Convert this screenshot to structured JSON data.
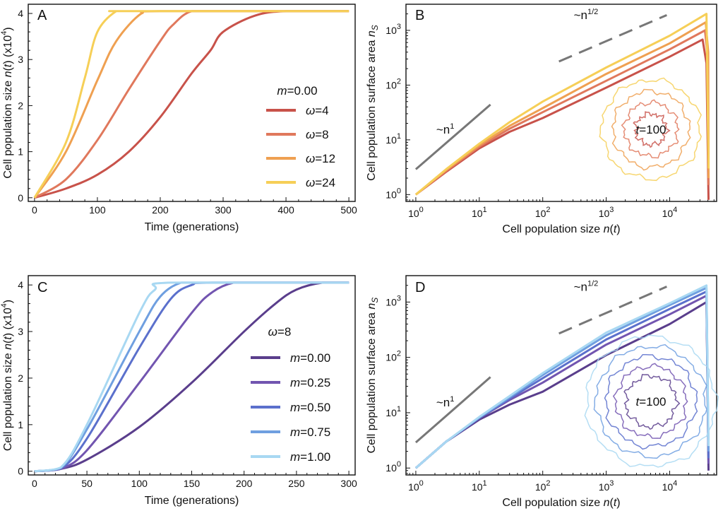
{
  "chart_data": [
    {
      "panel": "A",
      "type": "line",
      "xlabel": "Time (generations)",
      "ylabel": "Cell population size n(t) (x10⁴)",
      "xlim": [
        -10,
        510
      ],
      "ylim": [
        -0.08,
        4.2
      ],
      "xticks": [
        "0",
        "100",
        "200",
        "300",
        "400",
        "500"
      ],
      "yticks": [
        "0",
        "1",
        "2",
        "3",
        "4"
      ],
      "legend_title": "m=0.00",
      "legend_placement": "right",
      "series": [
        {
          "name": "ω=4",
          "color": "#c8524a",
          "x": [
            0,
            50,
            100,
            150,
            200,
            250,
            280,
            300,
            350,
            400,
            500
          ],
          "y": [
            0,
            0.2,
            0.5,
            1.0,
            1.75,
            2.7,
            3.2,
            3.6,
            3.95,
            4.05,
            4.05
          ]
        },
        {
          "name": "ω=8",
          "color": "#e0785c",
          "x": [
            0,
            50,
            100,
            150,
            200,
            220,
            250,
            300,
            500
          ],
          "y": [
            0,
            0.4,
            1.25,
            2.35,
            3.4,
            3.75,
            4.05,
            4.05,
            4.05
          ]
        },
        {
          "name": "ω=12",
          "color": "#efa051",
          "x": [
            0,
            50,
            100,
            130,
            170,
            200,
            500
          ],
          "y": [
            0,
            1.0,
            2.55,
            3.4,
            4.0,
            4.05,
            4.05
          ]
        },
        {
          "name": "ω=24",
          "color": "#f6cf57",
          "x": [
            0,
            50,
            80,
            100,
            130,
            150,
            500
          ],
          "y": [
            0,
            1.2,
            2.6,
            3.6,
            4.05,
            4.05,
            4.05
          ]
        }
      ]
    },
    {
      "panel": "B",
      "type": "line",
      "xlabel": "Cell population size n(t)",
      "ylabel": "Cell population surface area nS",
      "xscale": "log",
      "yscale": "log",
      "xlim": [
        0.7,
        55000
      ],
      "ylim": [
        0.75,
        3000
      ],
      "xticks": [
        "10⁰",
        "10¹",
        "10²",
        "10³",
        "10⁴"
      ],
      "yticks": [
        "10⁰",
        "10¹",
        "10²",
        "10³"
      ],
      "annotations": [
        "~n¹",
        "~n¹ᐟ²",
        "t=100"
      ],
      "series": [
        {
          "name": "ω=4",
          "color": "#c8524a",
          "x": [
            1,
            3,
            10,
            30,
            100,
            1000,
            10000,
            33000,
            38000,
            41000
          ],
          "y": [
            1,
            2.6,
            7,
            14,
            25,
            90,
            330,
            680,
            250,
            0.8
          ]
        },
        {
          "name": "ω=8",
          "color": "#e0785c",
          "x": [
            1,
            3,
            10,
            30,
            100,
            1000,
            10000,
            36000,
            40000,
            41000
          ],
          "y": [
            1,
            2.7,
            7.5,
            16,
            32,
            120,
            450,
            1000,
            300,
            1.5
          ]
        },
        {
          "name": "ω=12",
          "color": "#efa051",
          "x": [
            1,
            3,
            10,
            30,
            100,
            1000,
            10000,
            37000,
            40500,
            41000
          ],
          "y": [
            1,
            2.8,
            8,
            18,
            38,
            160,
            580,
            1400,
            400,
            2
          ]
        },
        {
          "name": "ω=24",
          "color": "#f6cf57",
          "x": [
            1,
            3,
            10,
            30,
            100,
            1000,
            10000,
            38000,
            41000
          ],
          "y": [
            1,
            2.9,
            8.5,
            21,
            50,
            210,
            800,
            2000,
            3
          ]
        }
      ]
    },
    {
      "panel": "C",
      "type": "line",
      "xlabel": "Time (generations)",
      "ylabel": "Cell population size n(t) (x10⁴)",
      "xlim": [
        -6,
        306
      ],
      "ylim": [
        -0.08,
        4.2
      ],
      "xticks": [
        "0",
        "50",
        "100",
        "150",
        "200",
        "250",
        "300"
      ],
      "yticks": [
        "0",
        "1",
        "2",
        "3",
        "4"
      ],
      "legend_title": "ω=8",
      "legend_placement": "right",
      "series": [
        {
          "name": "m=0.00",
          "color": "#5a3e8c",
          "x": [
            0,
            25,
            50,
            100,
            150,
            200,
            230,
            250,
            275,
            300
          ],
          "y": [
            0,
            0.05,
            0.25,
            0.95,
            1.9,
            3.0,
            3.6,
            3.9,
            4.05,
            4.05
          ]
        },
        {
          "name": "m=0.25",
          "color": "#7255b0",
          "x": [
            0,
            25,
            50,
            100,
            150,
            170,
            190,
            210,
            300
          ],
          "y": [
            0,
            0.05,
            0.45,
            1.9,
            3.4,
            3.85,
            4.05,
            4.05,
            4.05
          ]
        },
        {
          "name": "m=0.50",
          "color": "#5b70cc",
          "x": [
            0,
            25,
            50,
            100,
            130,
            150,
            170,
            300
          ],
          "y": [
            0,
            0.06,
            0.7,
            2.65,
            3.7,
            4.0,
            4.05,
            4.05
          ]
        },
        {
          "name": "m=0.75",
          "color": "#6f9fe0",
          "x": [
            0,
            25,
            50,
            100,
            120,
            140,
            160,
            300
          ],
          "y": [
            0,
            0.07,
            0.9,
            3.0,
            3.75,
            4.05,
            4.05,
            4.05
          ]
        },
        {
          "name": "m=1.00",
          "color": "#a8d8f2",
          "x": [
            0,
            25,
            50,
            100,
            115,
            130,
            300
          ],
          "y": [
            0,
            0.08,
            1.0,
            3.4,
            3.9,
            4.05,
            4.05
          ]
        }
      ]
    },
    {
      "panel": "D",
      "type": "line",
      "xlabel": "Cell population size n(t)",
      "ylabel": "Cell population surface area nS",
      "xscale": "log",
      "yscale": "log",
      "xlim": [
        0.7,
        55000
      ],
      "ylim": [
        0.75,
        3000
      ],
      "xticks": [
        "10⁰",
        "10¹",
        "10²",
        "10³",
        "10⁴"
      ],
      "yticks": [
        "10⁰",
        "10¹",
        "10²",
        "10³"
      ],
      "annotations": [
        "~n¹",
        "~n¹ᐟ²",
        "t=100"
      ],
      "series": [
        {
          "name": "m=0.00",
          "color": "#5a3e8c",
          "x": [
            1,
            3,
            10,
            30,
            100,
            1000,
            10000,
            38000,
            41000
          ],
          "y": [
            1,
            3,
            7.5,
            14,
            24,
            110,
            400,
            1000,
            0.9
          ]
        },
        {
          "name": "m=0.25",
          "color": "#7255b0",
          "x": [
            1,
            3,
            10,
            30,
            100,
            1000,
            10000,
            38000,
            41000
          ],
          "y": [
            1,
            3,
            8,
            17,
            35,
            170,
            600,
            1300,
            1.2
          ]
        },
        {
          "name": "m=0.50",
          "color": "#5b70cc",
          "x": [
            1,
            3,
            10,
            30,
            100,
            1000,
            10000,
            38000,
            41000
          ],
          "y": [
            1,
            3,
            8,
            18,
            42,
            210,
            750,
            1550,
            1.5
          ]
        },
        {
          "name": "m=0.75",
          "color": "#6f9fe0",
          "x": [
            1,
            3,
            10,
            30,
            100,
            1000,
            10000,
            38000,
            41000
          ],
          "y": [
            1,
            3,
            8.2,
            19,
            48,
            250,
            880,
            1800,
            2
          ]
        },
        {
          "name": "m=1.00",
          "color": "#a8d8f2",
          "x": [
            1,
            3,
            10,
            30,
            100,
            1000,
            10000,
            38000,
            41000
          ],
          "y": [
            1,
            3,
            8.4,
            20,
            52,
            280,
            950,
            2000,
            2.5
          ]
        }
      ]
    }
  ]
}
